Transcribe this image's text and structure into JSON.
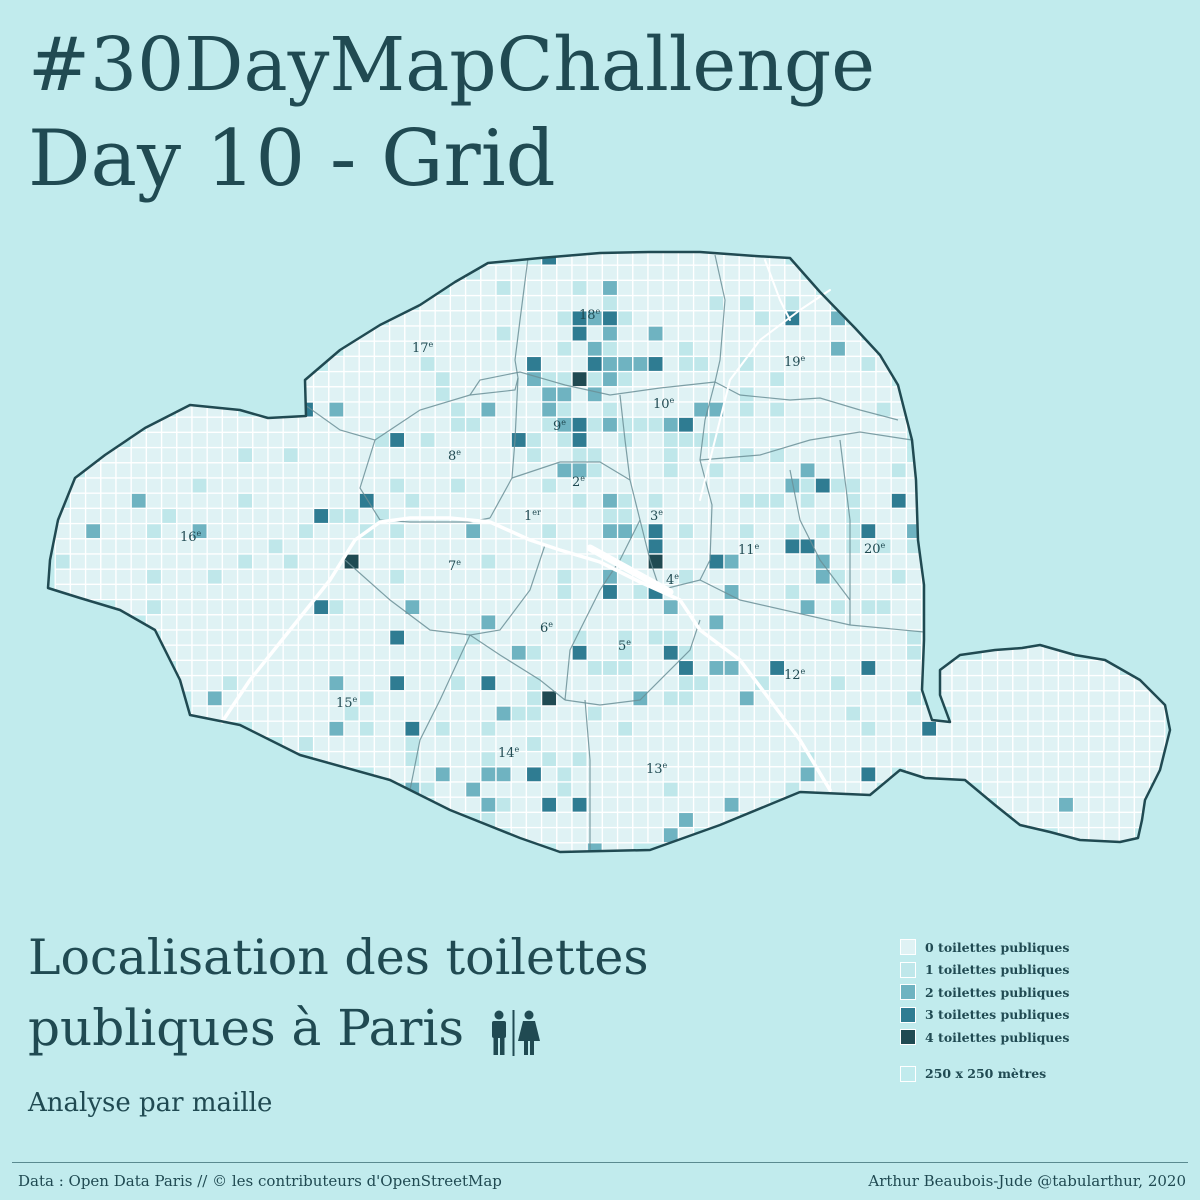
{
  "header": {
    "line1": "#30DayMapChallenge",
    "line2": "Day 10 - Grid"
  },
  "map": {
    "title_line1": "Localisation des toilettes",
    "title_line2": "publiques à Paris",
    "subtitle": "Analyse par maille",
    "icon": "toilet-icon",
    "arrondissements": [
      {
        "num": "1",
        "sup": "er"
      },
      {
        "num": "2",
        "sup": "e"
      },
      {
        "num": "3",
        "sup": "e"
      },
      {
        "num": "4",
        "sup": "e"
      },
      {
        "num": "5",
        "sup": "e"
      },
      {
        "num": "6",
        "sup": "e"
      },
      {
        "num": "7",
        "sup": "e"
      },
      {
        "num": "8",
        "sup": "e"
      },
      {
        "num": "9",
        "sup": "e"
      },
      {
        "num": "10",
        "sup": "e"
      },
      {
        "num": "11",
        "sup": "e"
      },
      {
        "num": "12",
        "sup": "e"
      },
      {
        "num": "13",
        "sup": "e"
      },
      {
        "num": "14",
        "sup": "e"
      },
      {
        "num": "15",
        "sup": "e"
      },
      {
        "num": "16",
        "sup": "e"
      },
      {
        "num": "17",
        "sup": "e"
      },
      {
        "num": "18",
        "sup": "e"
      },
      {
        "num": "19",
        "sup": "e"
      },
      {
        "num": "20",
        "sup": "e"
      }
    ],
    "colors": {
      "background": "#c1ebed",
      "c0": "#dff2f4",
      "c1": "#bfe7ea",
      "c2": "#6fb3c1",
      "c3": "#2f7c92",
      "c4": "#204a52",
      "outline": "#204a52",
      "seine": "#ffffff"
    }
  },
  "legend": {
    "items": [
      {
        "label": "0 toilettes publiques",
        "level": 0
      },
      {
        "label": "1 toilettes publiques",
        "level": 1
      },
      {
        "label": "2 toilettes publiques",
        "level": 2
      },
      {
        "label": "3 toilettes publiques",
        "level": 3
      },
      {
        "label": "4 toilettes publiques",
        "level": 4
      }
    ],
    "cell_size_label": "250 x 250 mètres"
  },
  "footer": {
    "left": "Data : Open Data Paris // © les contributeurs d'OpenStreetMap",
    "right": "Arthur Beaubois-Jude @tabularthur, 2020"
  }
}
